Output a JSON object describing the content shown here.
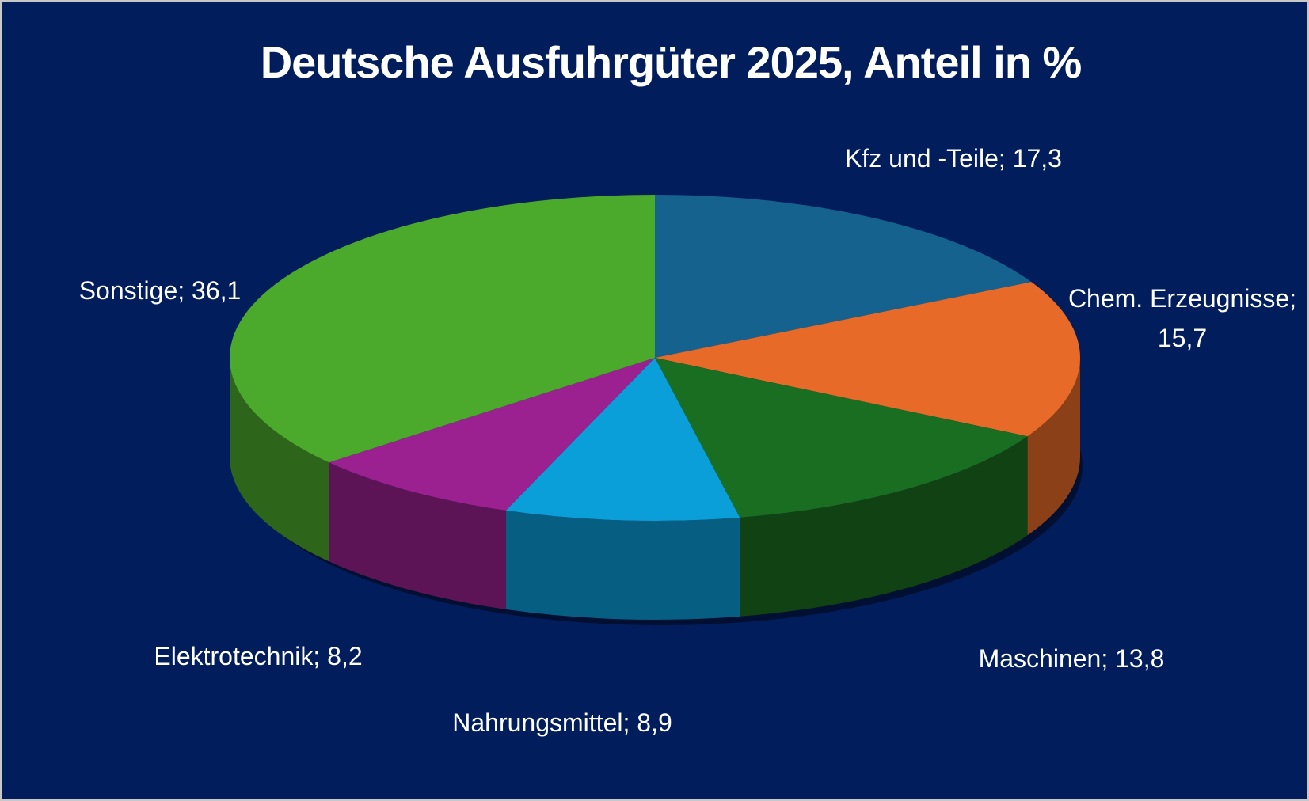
{
  "chart_data": {
    "type": "pie3d",
    "title": "Deutsche Ausfuhrgüter 2025, Anteil in %",
    "categories": [
      "Kfz und -Teile",
      "Chem. Erzeugnisse",
      "Maschinen",
      "Nahrungsmittel",
      "Elektrotechnik",
      "Sonstige"
    ],
    "values": [
      17.3,
      15.7,
      13.8,
      8.9,
      8.2,
      36.1
    ],
    "value_labels": [
      "17,3",
      "15,7",
      "13,8",
      "8,9",
      "8,2",
      "36,1"
    ],
    "label_separator": "; ",
    "colors": [
      "#15628e",
      "#e86a28",
      "#1a6e22",
      "#0a9fd9",
      "#9b2190",
      "#4ba92b"
    ]
  }
}
